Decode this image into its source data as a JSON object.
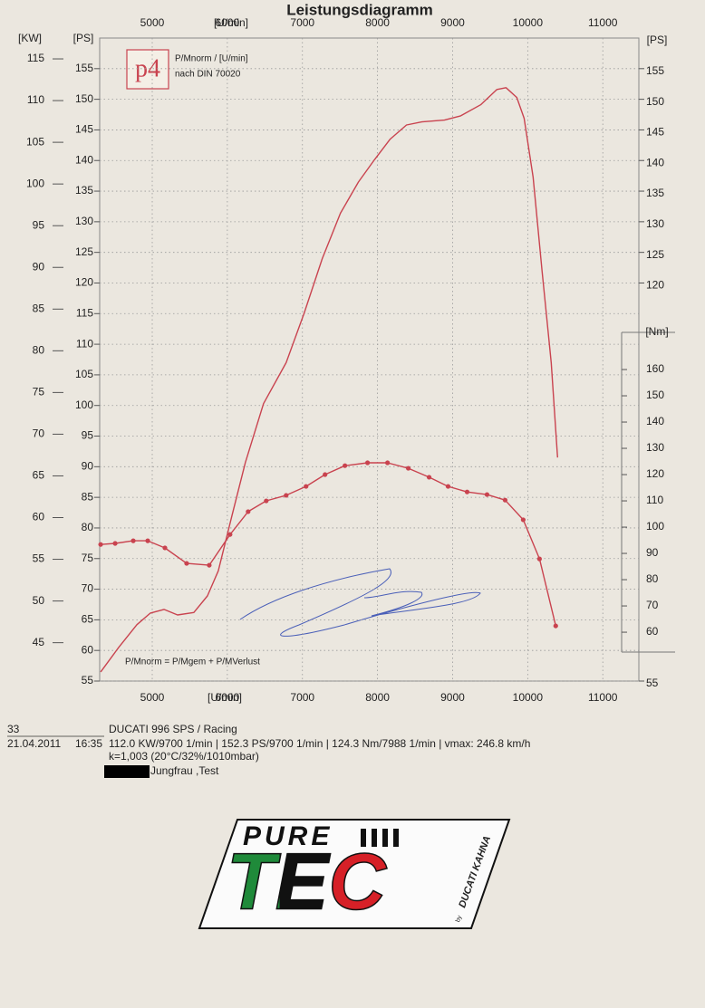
{
  "chart_data": {
    "type": "line",
    "title": "Leistungsdiagramm",
    "x_label": "[U/min]",
    "y_label": "[PS]",
    "y2_label": "[KW]",
    "y3_label": "[Nm]",
    "xlim": [
      4300,
      11480
    ],
    "xticks": [
      5000,
      6000,
      7000,
      8000,
      9000,
      10000,
      11000
    ],
    "ylim": [
      55,
      160
    ],
    "yticks": [
      55,
      60,
      65,
      70,
      75,
      80,
      85,
      90,
      95,
      100,
      105,
      110,
      115,
      120,
      125,
      130,
      135,
      140,
      145,
      150,
      155
    ],
    "yticks_right": [
      55,
      120,
      125,
      130,
      135,
      140,
      145,
      150,
      155
    ],
    "y2lim": [
      40.4,
      117.5
    ],
    "y2ticks": [
      45,
      50,
      55,
      60,
      65,
      70,
      75,
      80,
      85,
      90,
      95,
      100,
      105,
      110,
      115
    ],
    "y3lim": [
      41.4,
      286.2
    ],
    "y3ticks": [
      60,
      70,
      80,
      90,
      100,
      110,
      120,
      130,
      140,
      150,
      160
    ],
    "grid": true,
    "legend": {
      "title": "P/Mnorm / [U/min]",
      "note": "nach DIN 70020",
      "logo": "p4"
    },
    "formula": "P/Mnorm = P/Mgem + P/MVerlust",
    "series": [
      {
        "color": "#c9434f",
        "axis": "y",
        "markers": false,
        "x": [
          4313,
          4554,
          4795,
          4976,
          5157,
          5337,
          5554,
          5735,
          5880,
          6060,
          6241,
          6482,
          6783,
          7024,
          7265,
          7506,
          7747,
          7964,
          8169,
          8386,
          8590,
          8892,
          9108,
          9373,
          9590,
          9711,
          9855,
          9952,
          10072,
          10193,
          10313,
          10398
        ],
        "values": [
          56.5,
          60.5,
          64.2,
          66.1,
          66.7,
          65.8,
          66.2,
          68.9,
          73,
          81.9,
          90.7,
          100.3,
          107,
          115.1,
          124,
          131.4,
          136.5,
          140.2,
          143.5,
          145.8,
          146.3,
          146.6,
          147.3,
          149.1,
          151.6,
          151.9,
          150.3,
          146.9,
          137.3,
          121.8,
          107,
          91.5
        ]
      },
      {
        "color": "#c9434f",
        "axis": "y3",
        "markers": true,
        "x": [
          4313,
          4506,
          4747,
          4940,
          5169,
          5458,
          5759,
          6036,
          6277,
          6518,
          6783,
          7048,
          7301,
          7566,
          7867,
          8133,
          8410,
          8687,
          8940,
          9193,
          9458,
          9699,
          9940,
          10157,
          10373
        ],
        "values": [
          93.4,
          93.8,
          94.8,
          94.8,
          92.1,
          86.2,
          85.5,
          97.2,
          105.9,
          110,
          112.1,
          115.5,
          120,
          123.4,
          124.5,
          124.5,
          122.4,
          119,
          115.5,
          113.4,
          112.4,
          110.3,
          102.8,
          87.9,
          62.4
        ]
      }
    ]
  },
  "report": {
    "number": "33",
    "vehicle": "DUCATI 996 SPS / Racing",
    "date": "21.04.2011",
    "time": "16:35",
    "results": "112.0 KW/9700 1/min  |  152.3 PS/9700 1/min  |  124.3 Nm/7988 1/min | vmax: 246.8 km/h",
    "conditions": "k=1,003 (20°C/32%/1010mbar)",
    "customer": "Jungfrau ,Test"
  },
  "sticker": {
    "line1": "PURE",
    "line2": "TEC",
    "by": "by",
    "brand": "DUCATI KAHNA"
  }
}
